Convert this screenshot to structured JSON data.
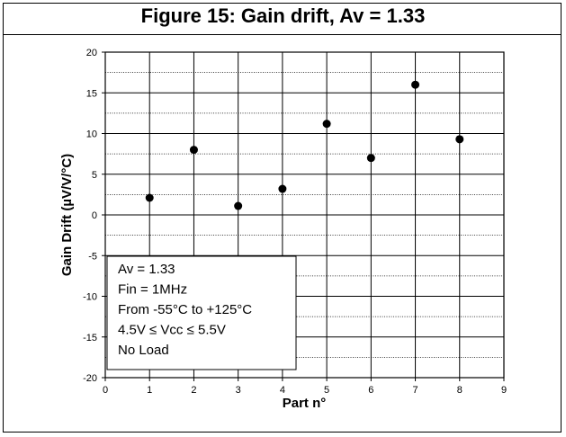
{
  "chart_data": {
    "type": "scatter",
    "title": "Figure 15: Gain drift, Av = 1.33",
    "xlabel": "Part n°",
    "ylabel": "Gain Drift (µV/V/°C)",
    "xlim": [
      0,
      9
    ],
    "ylim": [
      -20,
      20
    ],
    "x_ticks": [
      0,
      1,
      2,
      3,
      4,
      5,
      6,
      7,
      8,
      9
    ],
    "y_ticks": [
      20,
      15,
      10,
      5,
      0,
      -5,
      -10,
      -15,
      -20
    ],
    "grid": true,
    "legend": "none",
    "marker_color": "#000000",
    "points": [
      {
        "x": 1,
        "y": 2.1
      },
      {
        "x": 2,
        "y": 8.0
      },
      {
        "x": 3,
        "y": 1.1
      },
      {
        "x": 4,
        "y": 3.2
      },
      {
        "x": 5,
        "y": 11.2
      },
      {
        "x": 6,
        "y": 7.0
      },
      {
        "x": 7,
        "y": 16.0
      },
      {
        "x": 8,
        "y": 9.3
      }
    ],
    "annotation": [
      "Av = 1.33",
      "Fin = 1MHz",
      "From -55°C to +125°C",
      "4.5V ≤ Vcc ≤ 5.5V",
      "No Load"
    ]
  }
}
